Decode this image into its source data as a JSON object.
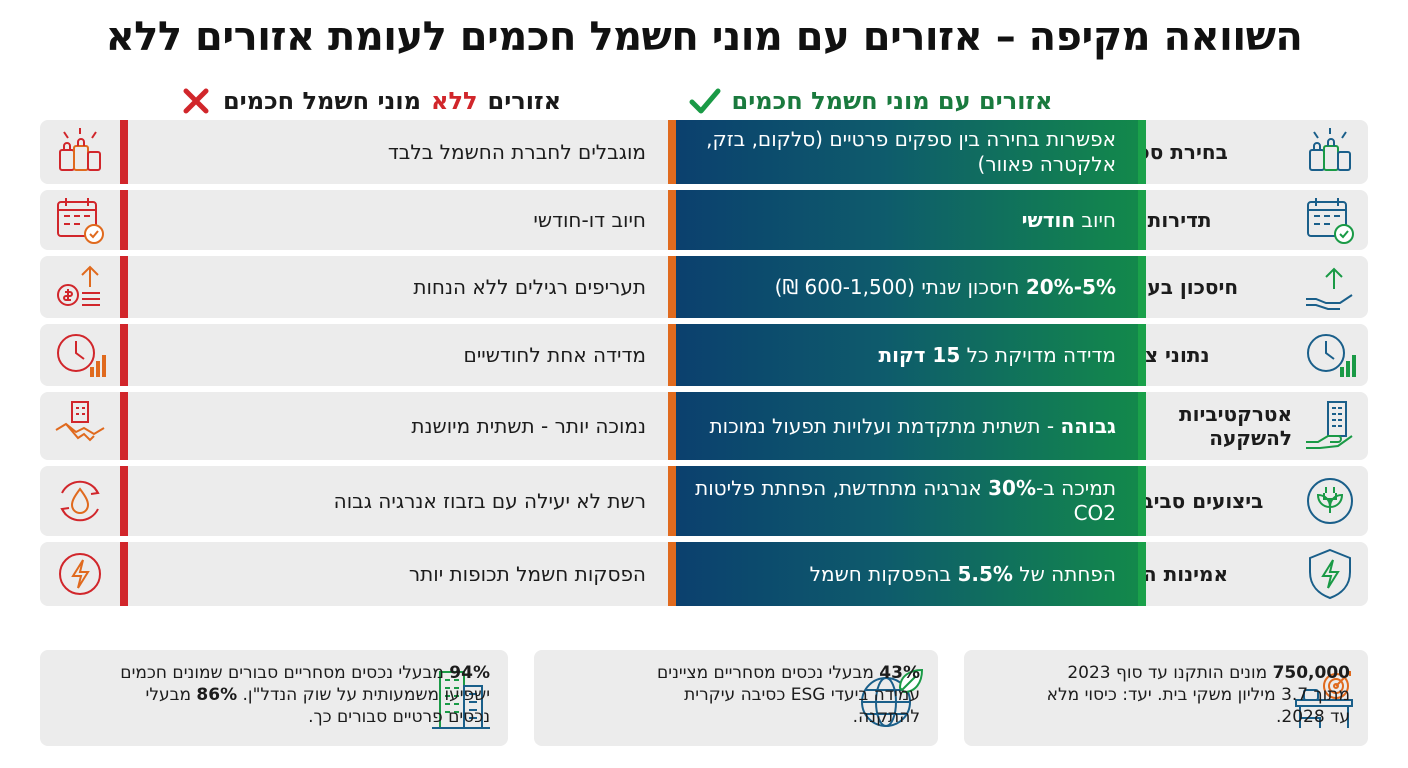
{
  "title": "השוואה מקיפה – אזורים עם מוני חשמל חכמים לעומת אזורים ללא",
  "headers": {
    "smart": "אזורים עם מוני חשמל חכמים",
    "nosmart_prefix": "אזורים",
    "nosmart_neg": "ללא",
    "nosmart_suffix": "מוני חשמל חכמים"
  },
  "colors": {
    "smart_green": "#1a7a3e",
    "negative_red": "#d1262b",
    "accent_orange": "#e06a1e"
  },
  "rows": [
    {
      "label": "בחירת ספקים",
      "icon": "shopping-bags-icon",
      "smart_pre": "",
      "smart_bold": "",
      "smart_post": "אפשרות בחירה בין ספקים פרטיים (סלקום, בזק, אלקטרה פאוור)",
      "none": "מוגבלים לחברת החשמל בלבד"
    },
    {
      "label": "תדירות חיוב",
      "icon": "calendar-check-icon",
      "smart_pre": "חיוב ",
      "smart_bold": "חודשי",
      "smart_post": "",
      "none": "חיוב דו-חודשי"
    },
    {
      "label": "חיסכון בעלויות",
      "icon": "savings-growth-icon",
      "smart_pre": "",
      "smart_bold": "5%-20%",
      "smart_post": " חיסכון שנתי (600-1,500 ₪)",
      "none": "תעריפים רגילים ללא הנחות"
    },
    {
      "label": "נתוני צריכה",
      "icon": "clock-chart-icon",
      "smart_pre": "מדידה מדויקת כל ",
      "smart_bold": "15 דקות",
      "smart_post": "",
      "none": "מדידה אחת לחודשיים"
    },
    {
      "label": "אטרקטיביות להשקעה",
      "icon": "building-handshake-icon",
      "smart_pre": "",
      "smart_bold": "גבוהה",
      "smart_post": " - תשתית מתקדמת ועלויות תפעול נמוכות",
      "none": "נמוכה יותר - תשתית מיושנת"
    },
    {
      "label": "ביצועים סביבתיים",
      "icon": "eco-plug-icon",
      "smart_pre": "תמיכה ב-",
      "smart_bold": "30%",
      "smart_post": " אנרגיה מתחדשת, הפחתת פליטות CO2",
      "none": "רשת לא יעילה עם בזבוז אנרגיה גבוה"
    },
    {
      "label": "אמינות הרשת",
      "icon": "shield-bolt-icon",
      "smart_pre": "הפחתה של ",
      "smart_bold": "5.5%",
      "smart_post": " בהפסקות חשמל",
      "none": "הפסקות חשמל תכופות יותר"
    }
  ],
  "stats": [
    {
      "icon": "target-desk-icon",
      "bold": "750,000",
      "text": " מונים הותקנו עד סוף 2023 מתוך 3.7 מיליון משקי בית. יעד: כיסוי מלא עד 2028."
    },
    {
      "icon": "globe-leaf-icon",
      "bold": "43%",
      "text": " מבעלי נכסים מסחריים מציינים עמידה ביעדי ESG כסיבה עיקרית להתקנה."
    },
    {
      "icon": "office-building-icon",
      "bold": "94%",
      "text": " מבעלי נכסים מסחריים סבורים שמונים חכמים ישפיעו משמעותית על שוק הנדל\"ן.",
      "bold2": "86%",
      "text2": " מבעלי נכסים פרטיים סבורים כך."
    }
  ]
}
